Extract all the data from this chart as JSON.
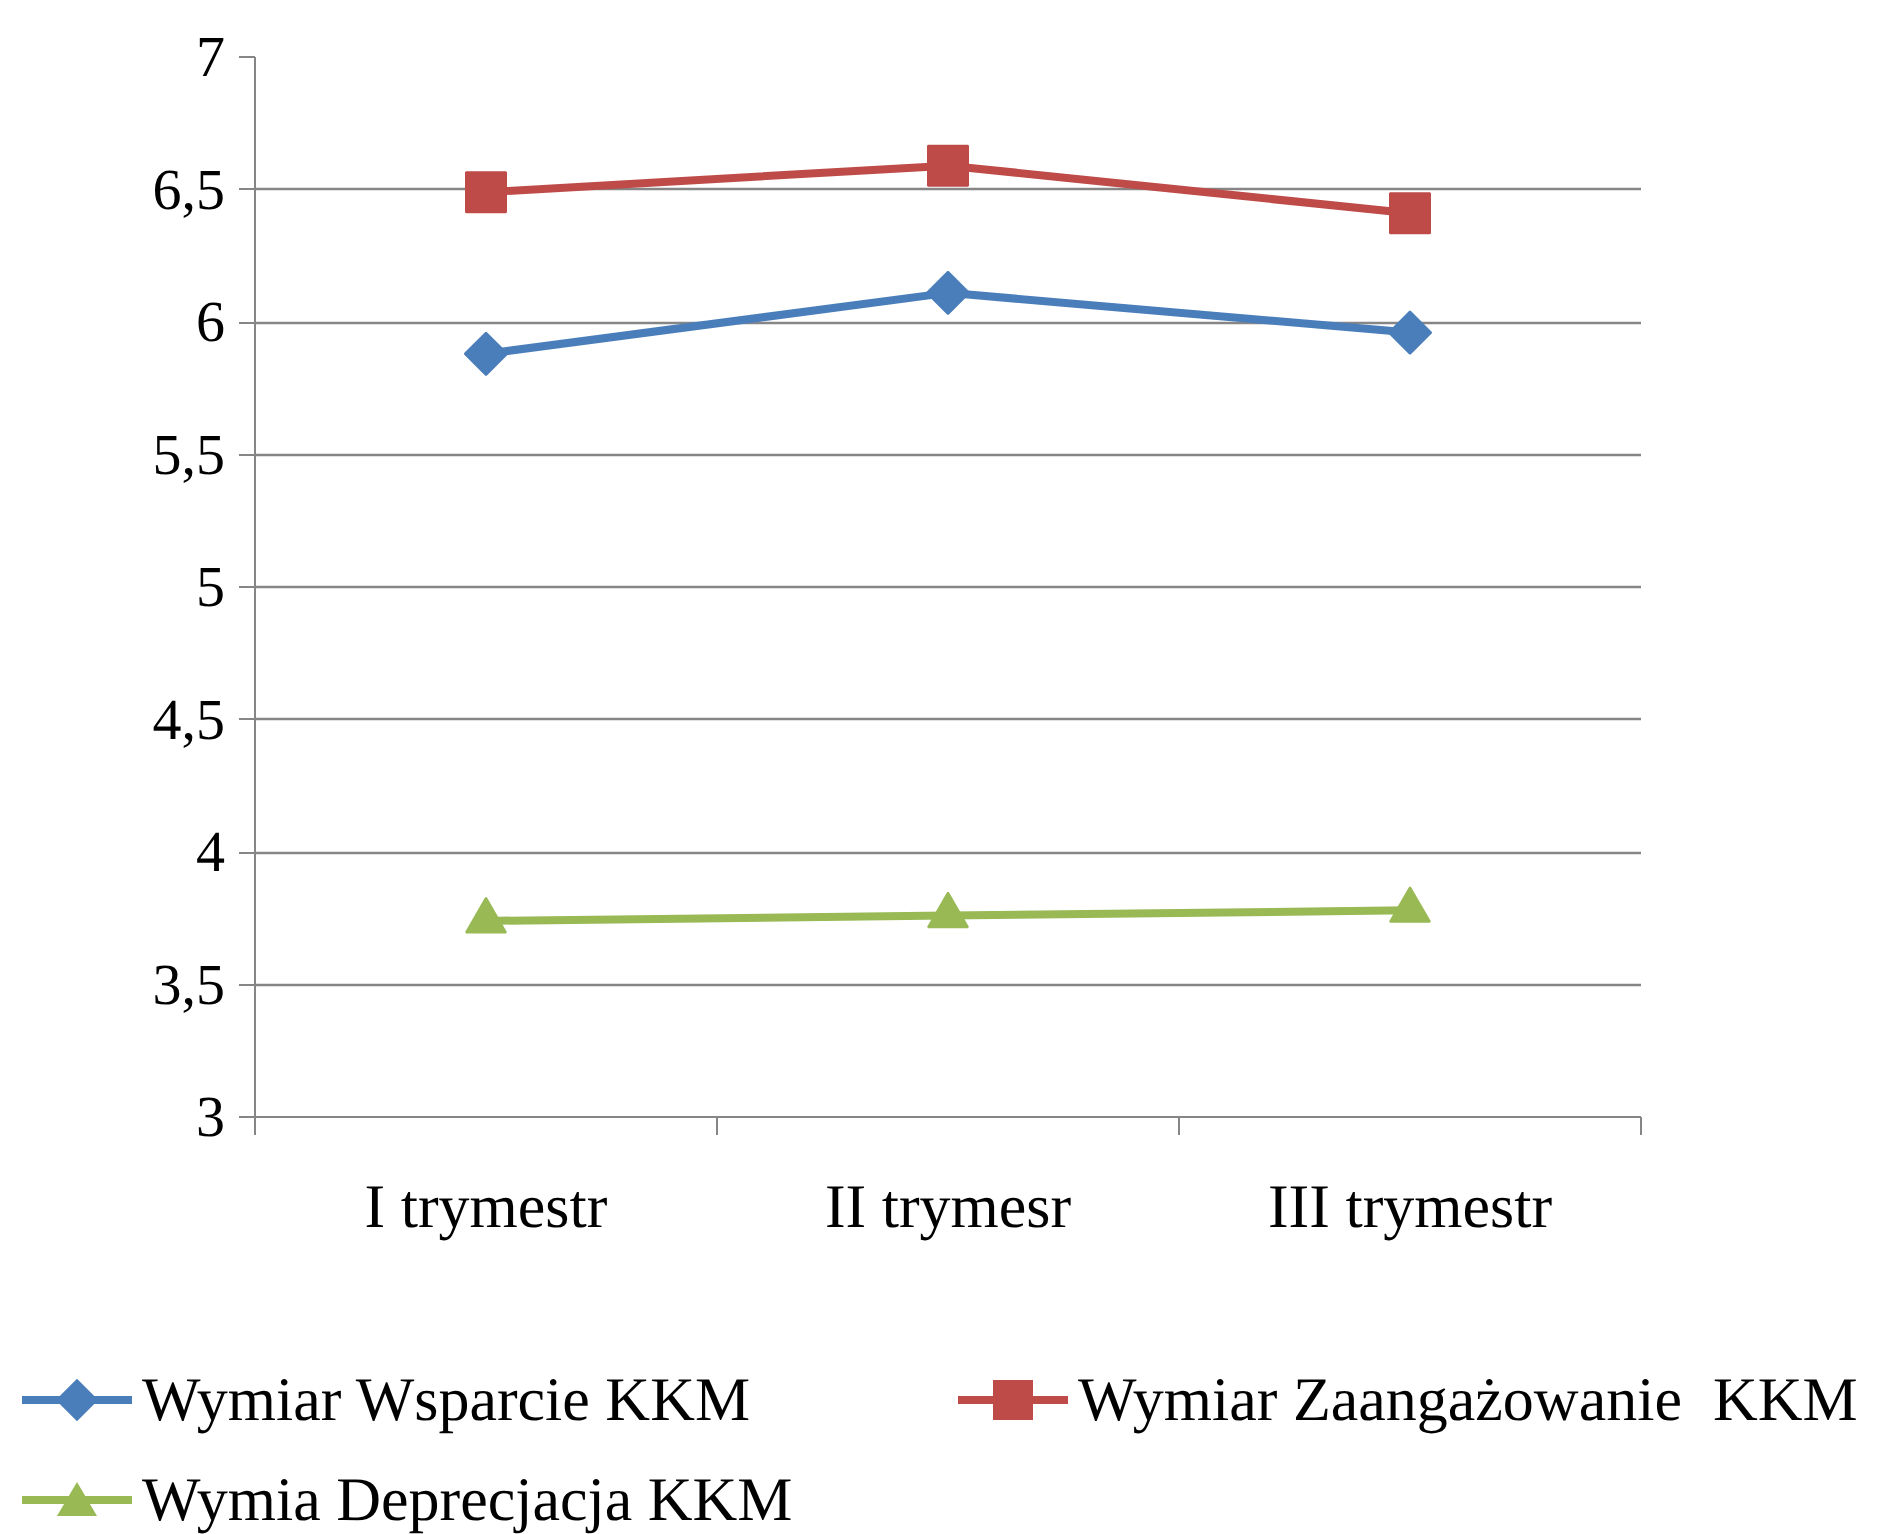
{
  "chart_data": {
    "type": "line",
    "categories": [
      "I trymestr",
      "II trymesr",
      "III trymestr"
    ],
    "series": [
      {
        "name": "Wymiar Wsparcie KKM",
        "color": "#4a7ebb",
        "marker": "diamond",
        "values": [
          5.88,
          6.11,
          5.96
        ]
      },
      {
        "name": "Wymiar Zaangażowanie  KKM",
        "color": "#be4b48",
        "marker": "square",
        "values": [
          6.49,
          6.59,
          6.41
        ]
      },
      {
        "name": "Wymia Deprecjacja KKM",
        "color": "#98b954",
        "marker": "triangle",
        "values": [
          3.74,
          3.76,
          3.78
        ]
      }
    ],
    "ylim": [
      3,
      7
    ],
    "yticks": [
      3,
      {
        "value": 3.5,
        "label": "3,5"
      },
      4,
      {
        "value": 4.5,
        "label": "4,5"
      },
      5,
      {
        "value": 5.5,
        "label": "5,5"
      },
      6,
      {
        "value": 6.5,
        "label": "6,5"
      },
      7
    ],
    "grid": "y",
    "legend": "bottom",
    "line_style": "solid"
  }
}
